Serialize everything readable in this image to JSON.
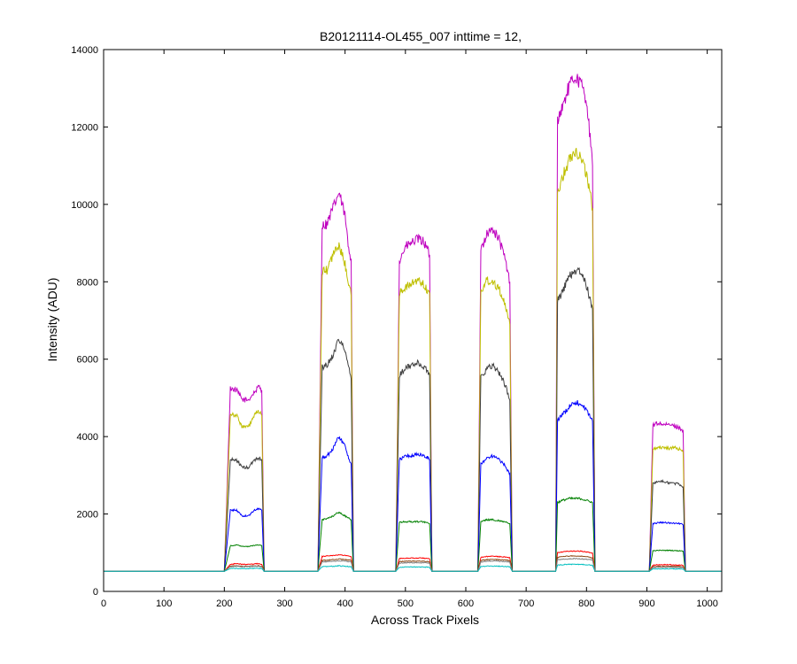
{
  "chart_data": {
    "type": "line",
    "title": "B20121114-OL455_007 inttime = 12,",
    "xlabel": "Across Track Pixels",
    "ylabel": "Intensity (ADU)",
    "xlim": [
      0,
      1024
    ],
    "ylim": [
      0,
      14000
    ],
    "xticks": [
      0,
      100,
      200,
      300,
      400,
      500,
      600,
      700,
      800,
      900,
      1000
    ],
    "yticks": [
      0,
      2000,
      4000,
      6000,
      8000,
      10000,
      12000,
      14000
    ],
    "grid": false,
    "legend": "none",
    "baseline": 520,
    "x": [
      0,
      195,
      200,
      210,
      220,
      230,
      240,
      250,
      258,
      262,
      266,
      350,
      355,
      362,
      370,
      380,
      390,
      400,
      405,
      410,
      414,
      480,
      484,
      490,
      500,
      510,
      520,
      530,
      537,
      540,
      544,
      615,
      620,
      625,
      635,
      645,
      655,
      665,
      670,
      673,
      677,
      745,
      749,
      752,
      760,
      770,
      780,
      790,
      800,
      806,
      810,
      814,
      900,
      904,
      910,
      920,
      930,
      940,
      950,
      957,
      960,
      964,
      1024
    ],
    "series": [
      {
        "color": "#bf00bf",
        "values": [
          520,
          520,
          520,
          5250,
          5200,
          4950,
          4950,
          5150,
          5300,
          5200,
          520,
          520,
          520,
          9450,
          9500,
          9900,
          10300,
          9700,
          8950,
          8600,
          520,
          520,
          520,
          8550,
          8900,
          9000,
          9100,
          9050,
          8800,
          8700,
          520,
          520,
          520,
          8850,
          9250,
          9350,
          9100,
          8600,
          8200,
          8000,
          520,
          520,
          520,
          12200,
          12500,
          13000,
          13300,
          13150,
          12700,
          11700,
          11000,
          520,
          520,
          520,
          4300,
          4350,
          4300,
          4300,
          4250,
          4200,
          4150,
          520,
          520
        ]
      },
      {
        "color": "#bfbf00",
        "values": [
          520,
          520,
          520,
          4600,
          4550,
          4250,
          4250,
          4550,
          4650,
          4550,
          520,
          520,
          520,
          8250,
          8300,
          8700,
          8950,
          8450,
          8050,
          7650,
          520,
          520,
          520,
          7700,
          7850,
          7950,
          8050,
          7950,
          7750,
          7700,
          520,
          520,
          520,
          7750,
          8050,
          8000,
          7850,
          7400,
          7050,
          6900,
          520,
          520,
          520,
          10300,
          10700,
          11100,
          11400,
          11250,
          10800,
          10250,
          9900,
          520,
          520,
          520,
          3700,
          3720,
          3720,
          3700,
          3700,
          3650,
          3600,
          520,
          520
        ]
      },
      {
        "color": "#404040",
        "values": [
          520,
          520,
          520,
          3400,
          3400,
          3200,
          3200,
          3400,
          3450,
          3400,
          520,
          520,
          520,
          5800,
          5850,
          6100,
          6550,
          6200,
          5850,
          5500,
          520,
          520,
          520,
          5600,
          5750,
          5850,
          5900,
          5800,
          5700,
          5600,
          520,
          520,
          520,
          5550,
          5750,
          5850,
          5650,
          5350,
          5100,
          4950,
          520,
          520,
          520,
          7500,
          7750,
          8100,
          8300,
          8250,
          7900,
          7500,
          7300,
          520,
          520,
          520,
          2800,
          2850,
          2830,
          2800,
          2780,
          2750,
          2700,
          520,
          520
        ]
      },
      {
        "color": "#0000ff",
        "values": [
          520,
          520,
          520,
          2100,
          2100,
          1950,
          1950,
          2100,
          2150,
          2100,
          520,
          520,
          520,
          3450,
          3500,
          3700,
          4000,
          3750,
          3500,
          3300,
          520,
          520,
          520,
          3400,
          3500,
          3500,
          3550,
          3500,
          3450,
          3400,
          520,
          520,
          520,
          3300,
          3450,
          3500,
          3400,
          3250,
          3100,
          3050,
          520,
          520,
          520,
          4450,
          4550,
          4750,
          4900,
          4850,
          4700,
          4500,
          4400,
          520,
          520,
          520,
          1750,
          1780,
          1780,
          1760,
          1760,
          1750,
          1720,
          520,
          520
        ]
      },
      {
        "color": "#008000",
        "values": [
          520,
          520,
          520,
          1180,
          1200,
          1160,
          1160,
          1190,
          1200,
          1180,
          520,
          520,
          520,
          1850,
          1880,
          1950,
          2050,
          1950,
          1900,
          1850,
          520,
          520,
          520,
          1780,
          1800,
          1800,
          1800,
          1800,
          1780,
          1750,
          520,
          520,
          520,
          1800,
          1850,
          1850,
          1830,
          1800,
          1770,
          1750,
          520,
          520,
          520,
          2300,
          2350,
          2400,
          2400,
          2400,
          2350,
          2320,
          2300,
          520,
          520,
          520,
          1050,
          1060,
          1060,
          1060,
          1050,
          1050,
          1040,
          520,
          520
        ]
      },
      {
        "color": "#ff0000",
        "values": [
          520,
          520,
          520,
          700,
          720,
          700,
          700,
          710,
          720,
          700,
          520,
          520,
          520,
          900,
          920,
          930,
          950,
          930,
          920,
          900,
          520,
          520,
          520,
          850,
          860,
          860,
          860,
          860,
          850,
          840,
          520,
          520,
          520,
          880,
          900,
          910,
          900,
          890,
          880,
          870,
          520,
          520,
          520,
          1000,
          1020,
          1040,
          1040,
          1040,
          1020,
          1000,
          990,
          520,
          520,
          520,
          680,
          690,
          690,
          690,
          680,
          680,
          670,
          520,
          520
        ]
      },
      {
        "color": "#8b4513",
        "values": [
          520,
          520,
          520,
          650,
          660,
          650,
          650,
          660,
          660,
          650,
          520,
          520,
          520,
          800,
          810,
          820,
          840,
          820,
          810,
          800,
          520,
          520,
          520,
          770,
          780,
          780,
          780,
          780,
          770,
          760,
          520,
          520,
          520,
          800,
          820,
          830,
          820,
          810,
          800,
          790,
          520,
          520,
          520,
          880,
          900,
          910,
          920,
          910,
          900,
          880,
          870,
          520,
          520,
          520,
          640,
          645,
          645,
          645,
          640,
          640,
          635,
          520,
          520
        ]
      },
      {
        "color": "#808080",
        "values": [
          520,
          520,
          520,
          640,
          650,
          640,
          640,
          650,
          650,
          640,
          520,
          520,
          520,
          760,
          770,
          780,
          790,
          780,
          770,
          760,
          520,
          520,
          520,
          730,
          740,
          740,
          740,
          740,
          730,
          720,
          520,
          520,
          520,
          760,
          780,
          790,
          780,
          770,
          760,
          750,
          520,
          520,
          520,
          820,
          830,
          840,
          850,
          840,
          830,
          820,
          810,
          520,
          520,
          520,
          620,
          625,
          625,
          625,
          620,
          620,
          615,
          520,
          520
        ]
      },
      {
        "color": "#00bfbf",
        "values": [
          520,
          520,
          520,
          590,
          595,
          590,
          590,
          595,
          595,
          590,
          520,
          520,
          520,
          640,
          645,
          650,
          660,
          650,
          645,
          640,
          520,
          520,
          520,
          625,
          630,
          630,
          630,
          630,
          625,
          620,
          520,
          520,
          520,
          640,
          650,
          655,
          650,
          645,
          640,
          635,
          520,
          520,
          520,
          680,
          690,
          700,
          700,
          700,
          690,
          680,
          675,
          520,
          520,
          520,
          580,
          582,
          582,
          582,
          580,
          580,
          578,
          520,
          520
        ]
      }
    ]
  }
}
